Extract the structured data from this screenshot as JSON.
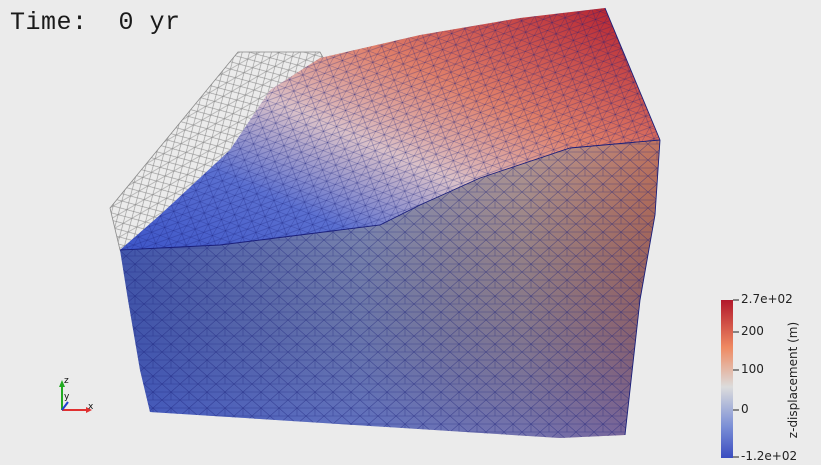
{
  "time_label": "Time:  0 yr",
  "colorbar": {
    "title": "z-displacement (m)",
    "ticks": [
      "2.7e+02",
      "200",
      "100",
      "0",
      "-1.2e+02"
    ],
    "max": 270,
    "min": -120,
    "colors": {
      "high": "#b2182b",
      "mid": "#dcdcdc",
      "low": "#3a4cc0"
    }
  },
  "orientation_axes": {
    "z": "z",
    "y": "y",
    "x": "x"
  },
  "colors": {
    "background": "#ebebeb",
    "mesh_edge": "#1a1f7a",
    "wire": "#9a9a9a"
  }
}
